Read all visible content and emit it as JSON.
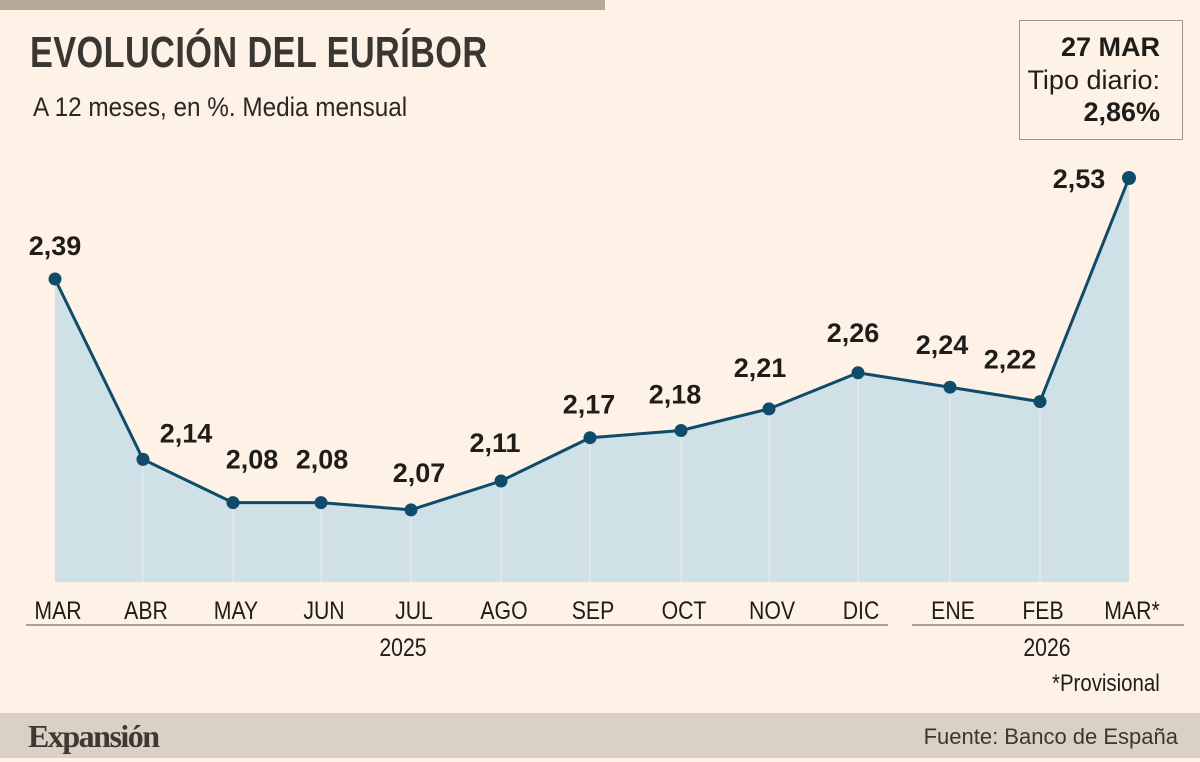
{
  "header": {
    "title": "EVOLUCIÓN DEL EURÍBOR",
    "subtitle": "A 12 meses, en %. Media mensual"
  },
  "highlight": {
    "date": "27 MAR",
    "label": "Tipo diario:",
    "value": "2,86%"
  },
  "chart_data": {
    "type": "area",
    "title": "EVOLUCIÓN DEL EURÍBOR",
    "subtitle": "A 12 meses, en %. Media mensual",
    "categories": [
      "MAR",
      "ABR",
      "MAY",
      "JUN",
      "JUL",
      "AGO",
      "SEP",
      "OCT",
      "NOV",
      "DIC",
      "ENE",
      "FEB",
      "MAR*"
    ],
    "years": [
      {
        "label": "2025",
        "from": 0,
        "to": 9
      },
      {
        "label": "2026",
        "from": 10,
        "to": 12
      }
    ],
    "values": [
      2.39,
      2.14,
      2.08,
      2.08,
      2.07,
      2.11,
      2.17,
      2.18,
      2.21,
      2.26,
      2.24,
      2.22,
      2.53
    ],
    "data_labels": [
      "2,39",
      "2,14",
      "2,08",
      "2,08",
      "2,07",
      "2,11",
      "2,17",
      "2,18",
      "2,21",
      "2,26",
      "2,24",
      "2,22",
      "2,53"
    ],
    "ylim": [
      1.97,
      2.55
    ],
    "grid": false,
    "colors": {
      "line": "#0f4c6b",
      "fill": "#cfe0e6",
      "marker": "#0f4c6b"
    }
  },
  "footnote": "*Provisional",
  "footer": {
    "logo": "Expansión",
    "source": "Fuente: Banco de España"
  }
}
